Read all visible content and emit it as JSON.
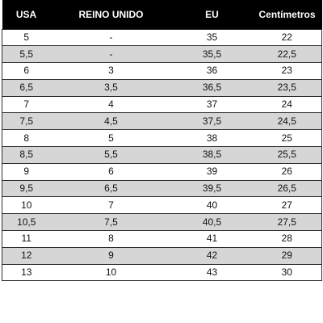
{
  "table": {
    "headers": [
      "USA",
      "REINO UNIDO",
      "EU",
      "Centímetros"
    ],
    "rows": [
      [
        "5",
        "-",
        "35",
        "22"
      ],
      [
        "5,5",
        "-",
        "35,5",
        "22,5"
      ],
      [
        "6",
        "3",
        "36",
        "23"
      ],
      [
        "6,5",
        "3,5",
        "36,5",
        "23,5"
      ],
      [
        "7",
        "4",
        "37",
        "24"
      ],
      [
        "7,5",
        "4,5",
        "37,5",
        "24,5"
      ],
      [
        "8",
        "5",
        "38",
        "25"
      ],
      [
        "8,5",
        "5,5",
        "38,5",
        "25,5"
      ],
      [
        "9",
        "6",
        "39",
        "26"
      ],
      [
        "9,5",
        "6,5",
        "39,5",
        "26,5"
      ],
      [
        "10",
        "7",
        "40",
        "27"
      ],
      [
        "10,5",
        "7,5",
        "40,5",
        "27,5"
      ],
      [
        "11",
        "8",
        "41",
        "28"
      ],
      [
        "12",
        "9",
        "42",
        "29"
      ],
      [
        "13",
        "10",
        "43",
        "30"
      ]
    ],
    "colors": {
      "header_bg": "#000000",
      "header_text": "#ffffff",
      "alt_row_bg": "#d6d6d6"
    }
  }
}
